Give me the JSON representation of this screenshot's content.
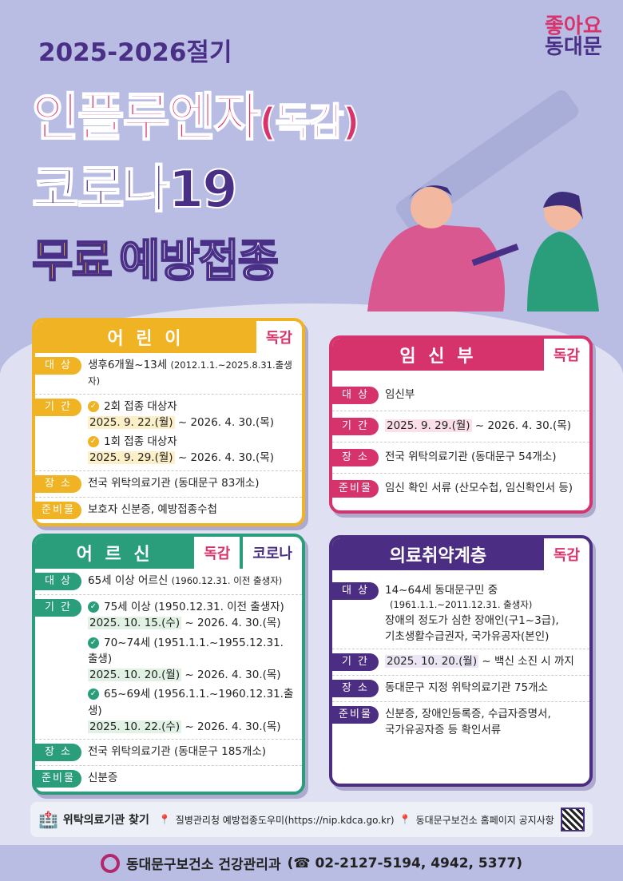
{
  "header": {
    "season": "2025-2026절기",
    "title1": "인플루엔자",
    "title1_paren": "(독감)",
    "title2": "코로나19",
    "title3a": "무료",
    "title3b": "예방접종",
    "logo_top": "좋아요",
    "logo_bottom": "동대문"
  },
  "colors": {
    "yellow": "#f0b323",
    "pink": "#d6336c",
    "green": "#2a9d7b",
    "purple": "#4b2d83"
  },
  "children": {
    "title": "어 린 이",
    "tag": "독감",
    "target_label": "대 상",
    "target": "생후6개월~13세",
    "target_note": "(2012.1.1.~2025.8.31.출생자)",
    "period_label": "기 간",
    "periods": [
      {
        "group": "2회 접종 대상자",
        "start": "2025. 9. 22.(월)",
        "end": "~ 2026. 4. 30.(목)"
      },
      {
        "group": "1회 접종 대상자",
        "start": "2025. 9. 29.(월)",
        "end": "~ 2026. 4. 30.(목)"
      }
    ],
    "place_label": "장 소",
    "place": "전국 위탁의료기관 (동대문구 83개소)",
    "prep_label": "준비물",
    "prep": "보호자 신분증, 예방접종수첩"
  },
  "pregnant": {
    "title": "임 신 부",
    "tag": "독감",
    "target_label": "대 상",
    "target": "임신부",
    "period_label": "기 간",
    "start": "2025. 9. 29.(월)",
    "end": "~ 2026. 4. 30.(목)",
    "place_label": "장 소",
    "place": "전국 위탁의료기관 (동대문구 54개소)",
    "prep_label": "준비물",
    "prep": "임신 확인 서류 (산모수첩, 임신확인서 등)"
  },
  "elderly": {
    "title": "어 르 신",
    "tag1": "독감",
    "tag2": "코로나",
    "target_label": "대 상",
    "target": "65세 이상 어르신",
    "target_note": "(1960.12.31. 이전 출생자)",
    "period_label": "기 간",
    "periods": [
      {
        "group": "75세 이상 (1950.12.31. 이전 출생자)",
        "start": "2025. 10. 15.(수)",
        "end": "~ 2026. 4. 30.(목)"
      },
      {
        "group": "70~74세 (1951.1.1.~1955.12.31. 출생)",
        "start": "2025. 10. 20.(월)",
        "end": "~ 2026. 4. 30.(목)"
      },
      {
        "group": "65~69세 (1956.1.1.~1960.12.31.출생)",
        "start": "2025. 10. 22.(수)",
        "end": "~ 2026. 4. 30.(목)"
      }
    ],
    "place_label": "장 소",
    "place": "전국 위탁의료기관 (동대문구 185개소)",
    "prep_label": "준비물",
    "prep": "신분증"
  },
  "vulnerable": {
    "title": "의료취약계층",
    "tag": "독감",
    "target_label": "대 상",
    "target1": "14~64세 동대문구민 중",
    "target2": "(1961.1.1.~2011.12.31. 출생자)",
    "target3": "장애의 정도가 심한 장애인(구1~3급),",
    "target4": "기초생활수급권자, 국가유공자(본인)",
    "period_label": "기 간",
    "start": "2025. 10. 20.(월)",
    "end": "~ 백신 소진 시 까지",
    "place_label": "장 소",
    "place": "동대문구 지정 위탁의료기관 75개소",
    "prep_label": "준비물",
    "prep1": "신분증, 장애인등록증, 수급자증명서,",
    "prep2": "국가유공자증 등 확인서류"
  },
  "footer": {
    "find": "위탁의료기관 찾기",
    "link1": "질병관리청 예방접종도우미(https://nip.kdca.go.kr)",
    "link2": "동대문구보건소 홈페이지 공지사항"
  },
  "bottom": {
    "org": "동대문구보건소 건강관리과",
    "phone": "(☎ 02-2127-5194, 4942, 5377)"
  }
}
